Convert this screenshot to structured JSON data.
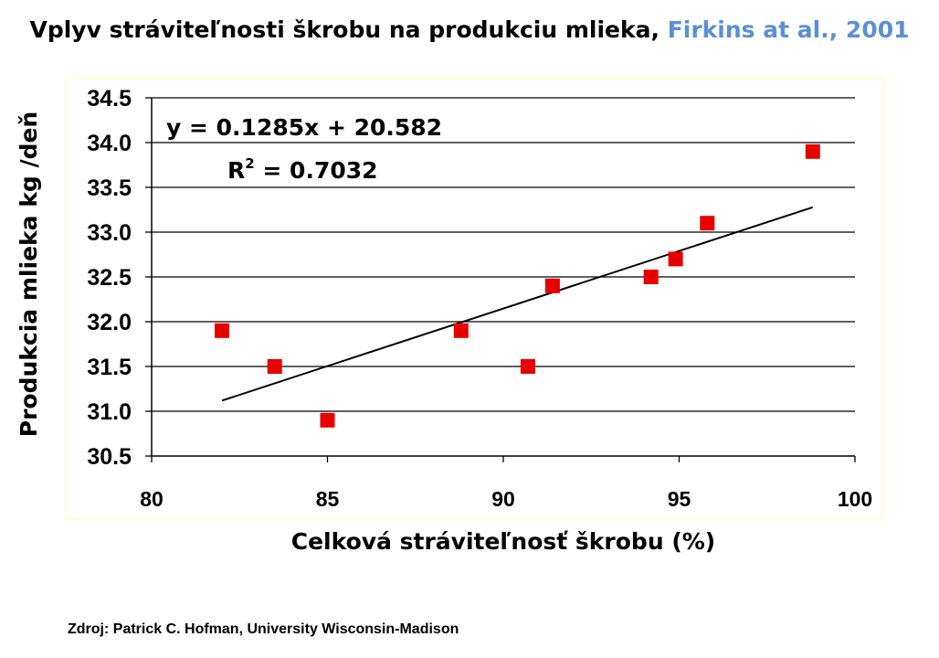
{
  "title": {
    "main": "Vplyv stráviteľnosti škrobu na produkciu mlieka, ",
    "citation": "Firkins at al., 2001"
  },
  "source_note": "Zdroj: Patrick C. Hofman, University Wisconsin-Madison",
  "colors": {
    "marker": "#e60000",
    "citation": "#5b8fd3",
    "plot_border": "#ffffc8"
  },
  "chart_data": {
    "type": "scatter",
    "title": "Vplyv stráviteľnosti škrobu na produkciu mlieka, Firkins at al., 2001",
    "xlabel": "Celková stráviteľnosť škrobu (%)",
    "ylabel": "Produkcia mlieka kg /deň",
    "xlim": [
      80,
      100
    ],
    "ylim": [
      30.5,
      34.5
    ],
    "x_ticks": [
      80,
      85,
      90,
      95,
      100
    ],
    "y_ticks": [
      30.5,
      31.0,
      31.5,
      32.0,
      32.5,
      33.0,
      33.5,
      34.0,
      34.5
    ],
    "x_tick_labels": [
      "80",
      "85",
      "90",
      "95",
      "100"
    ],
    "y_tick_labels": [
      "30.5",
      "31.0",
      "31.5",
      "32.0",
      "32.5",
      "33.0",
      "33.5",
      "34.0",
      "34.5"
    ],
    "grid": "horizontal",
    "points": [
      {
        "x": 82.0,
        "y": 31.9
      },
      {
        "x": 83.5,
        "y": 31.5
      },
      {
        "x": 85.0,
        "y": 30.9
      },
      {
        "x": 88.8,
        "y": 31.9
      },
      {
        "x": 90.7,
        "y": 31.5
      },
      {
        "x": 91.4,
        "y": 32.4
      },
      {
        "x": 94.2,
        "y": 32.5
      },
      {
        "x": 94.9,
        "y": 32.7
      },
      {
        "x": 95.8,
        "y": 33.1
      },
      {
        "x": 98.8,
        "y": 33.9
      }
    ],
    "trendline": {
      "slope": 0.1285,
      "intercept": 20.582,
      "x_range": [
        82.0,
        98.8
      ],
      "equation_label": "y = 0.1285x + 20.582",
      "r2_label_prefix": "R",
      "r2_label_sup": "2",
      "r2_label_value": " = 0.7032"
    }
  }
}
